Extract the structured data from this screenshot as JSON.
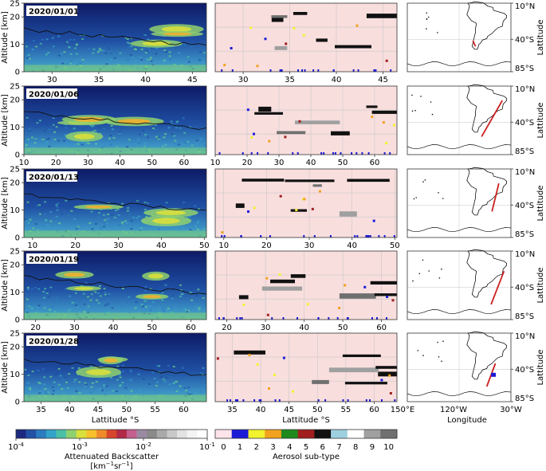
{
  "chart_data": {
    "type": "heatmap",
    "rows": [
      {
        "date": "2020/01/01",
        "lat_ticks": [
          30,
          35,
          40,
          45
        ],
        "lat_range": [
          27,
          46.5
        ],
        "track": {
          "lat": [
            -42,
            -50
          ],
          "lon": [
            -74,
            -71
          ]
        },
        "marker": ""
      },
      {
        "date": "2020/01/06",
        "lat_ticks": [
          10,
          20,
          30,
          40,
          50,
          60
        ],
        "lat_range": [
          10,
          67
        ],
        "track": {
          "lat": [
            -10,
            -60
          ],
          "lon": [
            -40,
            -64
          ]
        },
        "marker": ""
      },
      {
        "date": "2020/01/13",
        "lat_ticks": [
          10,
          20,
          30,
          40,
          50
        ],
        "lat_range": [
          8,
          50.5
        ],
        "track": {
          "lat": [
            -10,
            -49
          ],
          "lon": [
            -44,
            -52
          ]
        },
        "marker": ""
      },
      {
        "date": "2020/01/19",
        "lat_ticks": [
          20,
          30,
          40,
          50,
          60
        ],
        "lat_range": [
          17,
          64
        ],
        "track": {
          "lat": [
            -18,
            -64
          ],
          "lon": [
            -38,
            -53
          ]
        },
        "marker": ""
      },
      {
        "date": "2020/01/28",
        "lat_ticks": [
          35,
          40,
          45,
          50,
          55,
          60
        ],
        "lat_range": [
          32,
          64
        ],
        "track": {
          "lat": [
            -32,
            -64
          ],
          "lon": [
            -48,
            -58
          ]
        },
        "marker": "blue"
      }
    ],
    "altitude_ticks": [
      0,
      10,
      20,
      25
    ],
    "altitude_range": [
      0,
      25
    ],
    "ylabel_profile": "Altitude [km]",
    "xlabel_profile": "Lattitude °S",
    "map": {
      "lat_ticks": [
        "10°N",
        "40°S",
        "85°S"
      ],
      "lon_ticks": [
        "150°E",
        "120°W",
        "30°W"
      ],
      "xlabel": "Longitude",
      "ylabel": "Lattitude"
    },
    "colorbar_backscatter": {
      "tick_labels": [
        "10",
        "10",
        "10",
        "10"
      ],
      "tick_exps": [
        "-4",
        "-3",
        "-2",
        "-1"
      ],
      "label_line1": "Attenuated Backscatter",
      "label_line2": "[km",
      "label_exp1": "−1",
      "label_mid": "sr",
      "label_exp2": "−1",
      "label_end": "]",
      "colors": [
        "#1b2a80",
        "#2251a6",
        "#2b7bc1",
        "#34a3c8",
        "#4cbfa7",
        "#8fd06f",
        "#d9df3c",
        "#f7c02c",
        "#f08a2a",
        "#d8452d",
        "#b22a4a",
        "#c45f8f",
        "#9a8aa2",
        "#8a8a8a",
        "#a9a9a9",
        "#c8c8c8",
        "#e2e2e2",
        "#f4f4f4",
        "#ffffff"
      ]
    },
    "colorbar_aerosol": {
      "labels": [
        "0",
        "1",
        "2",
        "3",
        "4",
        "5",
        "6",
        "7",
        "8",
        "9",
        "10"
      ],
      "colors": [
        "#fce4ea",
        "#1b1bd6",
        "#f2f22e",
        "#f2a21e",
        "#1e8a1e",
        "#a01e1e",
        "#111111",
        "#9fd0e0",
        "#ffffff",
        "#a0a0a0",
        "#707070"
      ],
      "label": "Aerosol sub-type"
    },
    "colors": {
      "profile_dark": "#0e1a66",
      "profile_mid": "#2a6bc0",
      "middle_bg": "#f9dede",
      "track": "#cc2020"
    }
  }
}
